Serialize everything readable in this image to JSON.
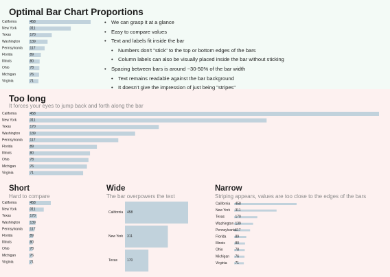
{
  "sections": {
    "optimal": {
      "title": "Optimal Bar Chart Proportions",
      "bullets": [
        {
          "level": 1,
          "text": "We can grasp it at a glance"
        },
        {
          "level": 1,
          "text": "Easy to compare values"
        },
        {
          "level": 1,
          "text": "Text and labels fit inside the bar"
        },
        {
          "level": 2,
          "text": "Numbers don't \"stick\" to the top or bottom edges of the bars"
        },
        {
          "level": 2,
          "text": "Column labels can also be visually placed inside the bar without sticking"
        },
        {
          "level": 1,
          "text": "Spacing between bars is around ~30-50% of the bar width"
        },
        {
          "level": 2,
          "text": "Text remains readable against the bar background"
        },
        {
          "level": 2,
          "text": "It doesn't give the impression of just being \"stripes\""
        }
      ]
    },
    "long": {
      "title": "Too long",
      "subtitle": "It forces your eyes to jump back and forth along the bar"
    },
    "short": {
      "title": "Short",
      "subtitle": "Hard to compare"
    },
    "wide": {
      "title": "Wide",
      "subtitle": "The bar overpowers the text"
    },
    "narrow": {
      "title": "Narrow",
      "subtitle": "Striping appears, values are too close to the edges of the bars"
    }
  },
  "colors": {
    "bar": "#c1d2dc",
    "optimal_bg": "#f3faf6",
    "bad_bg": "#fdf1f0"
  },
  "chart_data": [
    {
      "id": "optimal",
      "type": "bar",
      "orientation": "horizontal",
      "categories": [
        "California",
        "New York",
        "Texas",
        "Washington",
        "Pennsylvania",
        "Florida",
        "Illinois",
        "Ohio",
        "Michigan",
        "Virginia"
      ],
      "values": [
        458,
        311,
        170,
        139,
        117,
        89,
        80,
        78,
        76,
        71
      ]
    },
    {
      "id": "long",
      "type": "bar",
      "orientation": "horizontal",
      "categories": [
        "California",
        "New York",
        "Texas",
        "Washington",
        "Pennsylvania",
        "Florida",
        "Illinois",
        "Ohio",
        "Michigan",
        "Virginia"
      ],
      "values": [
        458,
        311,
        170,
        139,
        117,
        89,
        80,
        78,
        76,
        71
      ]
    },
    {
      "id": "short",
      "type": "bar",
      "orientation": "horizontal",
      "categories": [
        "California",
        "New York",
        "Texas",
        "Washington",
        "Pennsylvania",
        "Florida",
        "Illinois",
        "Ohio",
        "Michigan",
        "Virginia"
      ],
      "values": [
        458,
        311,
        170,
        139,
        117,
        89,
        80,
        78,
        76,
        71
      ]
    },
    {
      "id": "wide",
      "type": "bar",
      "orientation": "horizontal",
      "categories": [
        "California",
        "New York",
        "Texas"
      ],
      "values": [
        458,
        311,
        170
      ]
    },
    {
      "id": "narrow",
      "type": "bar",
      "orientation": "horizontal",
      "categories": [
        "California",
        "New York",
        "Texas",
        "Washington",
        "Pennsylvania",
        "Florida",
        "Illinois",
        "Ohio",
        "Michigan",
        "Virginia"
      ],
      "values": [
        458,
        311,
        170,
        139,
        117,
        89,
        80,
        78,
        76,
        71
      ]
    }
  ]
}
